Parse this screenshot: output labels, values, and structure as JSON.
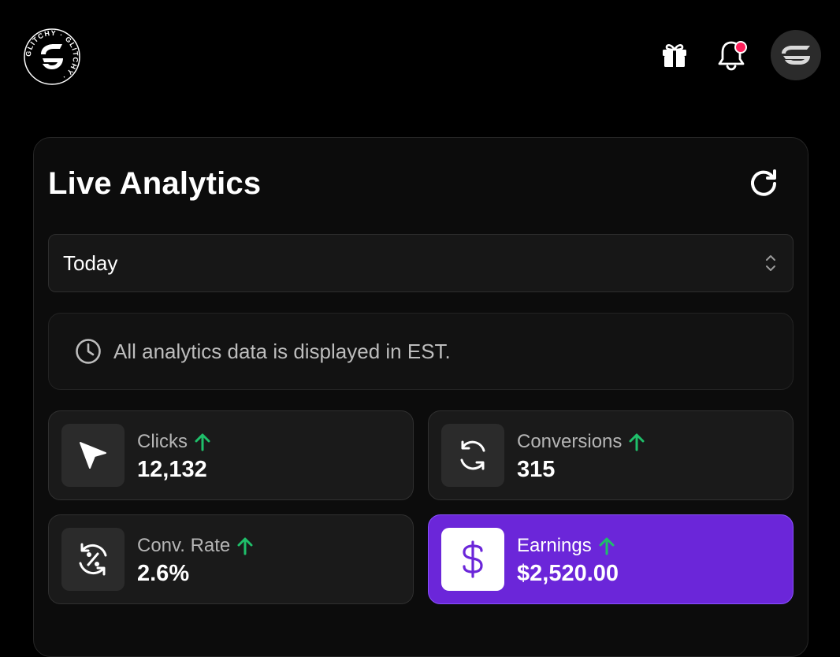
{
  "header": {
    "logo_text": "GLITCHY · GLITCHY ·",
    "notification_dot": true
  },
  "panel": {
    "title": "Live Analytics",
    "range_select": {
      "value": "Today"
    },
    "notice": "All analytics data is displayed in EST."
  },
  "stats": {
    "clicks": {
      "label": "Clicks",
      "value": "12,132",
      "trend": "up"
    },
    "conversions": {
      "label": "Conversions",
      "value": "315",
      "trend": "up"
    },
    "conv_rate": {
      "label": "Conv. Rate",
      "value": "2.6%",
      "trend": "up"
    },
    "earnings": {
      "label": "Earnings",
      "value": "$2,520.00",
      "trend": "up"
    }
  },
  "colors": {
    "background": "#000000",
    "panel": "#0c0c0c",
    "card": "#1a1a1a",
    "accent_purple": "#6b26d9",
    "trend_up_green": "#1fbf6a",
    "notification_red": "#ff1f5a"
  },
  "icons": {
    "gift": "gift-icon",
    "bell": "bell-icon",
    "refresh": "refresh-icon",
    "clock": "clock-icon",
    "cursor": "cursor-icon",
    "sync": "sync-icon",
    "percent": "percent-cycle-icon",
    "dollar": "dollar-icon"
  }
}
